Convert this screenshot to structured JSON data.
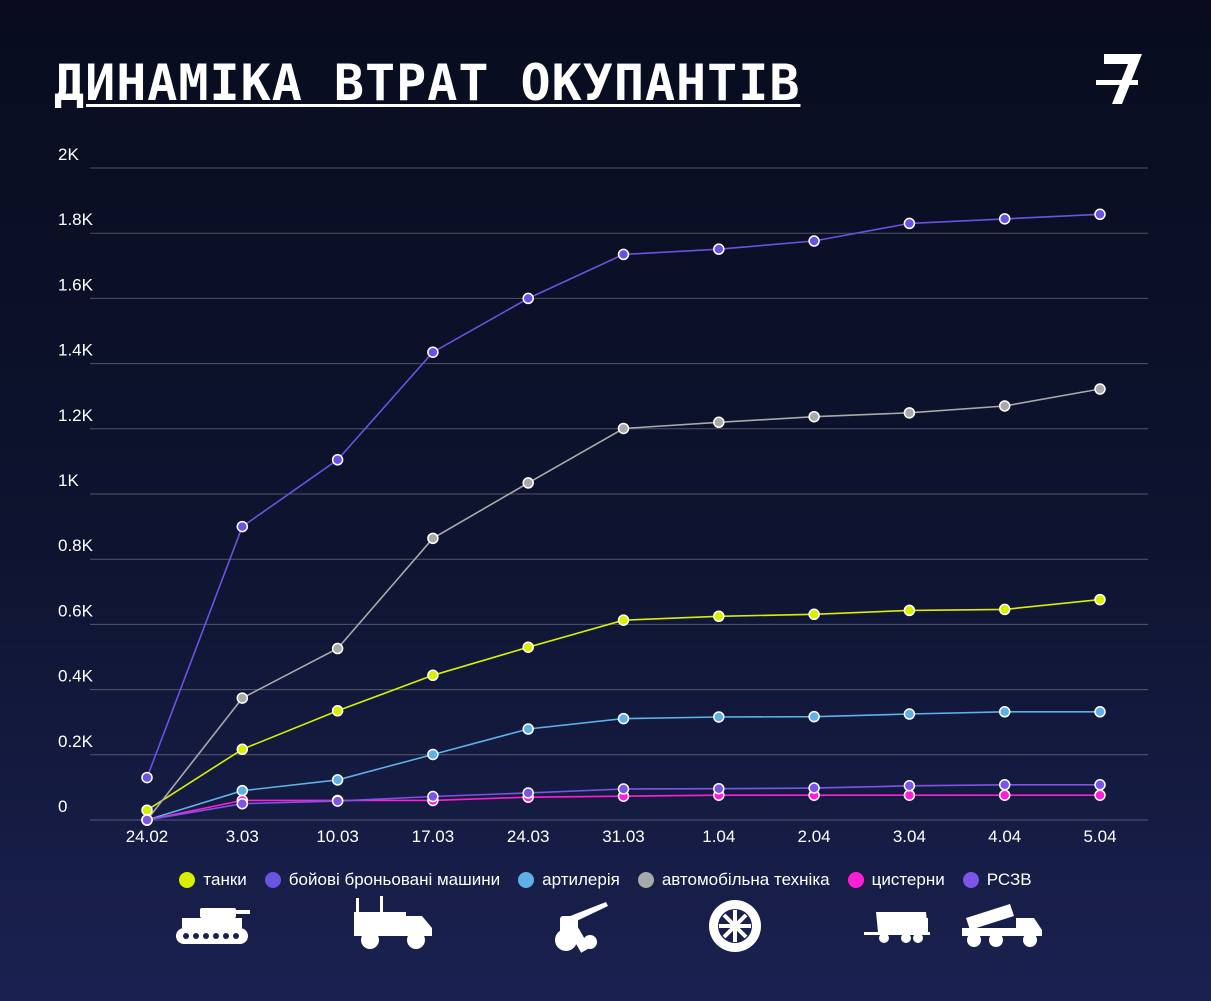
{
  "title": "ДИНАМІКА ВТРАТ ОКУПАНТІВ",
  "logo": {
    "icon": "z-logo-icon"
  },
  "chart_data": {
    "type": "line",
    "categories": [
      "24.02",
      "3.03",
      "10.03",
      "17.03",
      "24.03",
      "31.03",
      "1.04",
      "2.04",
      "3.04",
      "4.04",
      "5.04"
    ],
    "y_ticks": [
      "0",
      "0.2K",
      "0.4K",
      "0.6K",
      "0.8K",
      "1K",
      "1.2K",
      "1.4K",
      "1.6K",
      "1.8K",
      "2K"
    ],
    "ylim": [
      0,
      2000
    ],
    "grid": true,
    "legend_position": "bottom",
    "series": [
      {
        "name": "танки",
        "color": "#d8f000",
        "values": [
          30,
          217,
          335,
          444,
          530,
          613,
          625,
          631,
          643,
          646,
          676
        ]
      },
      {
        "name": "бойові броньовані машини",
        "color": "#6c52e0",
        "values": [
          130,
          900,
          1105,
          1435,
          1600,
          1735,
          1751,
          1776,
          1830,
          1844,
          1858
        ]
      },
      {
        "name": "артилерія",
        "color": "#5fb0e6",
        "values": [
          0,
          90,
          123,
          201,
          279,
          311,
          316,
          317,
          325,
          332,
          332
        ]
      },
      {
        "name": "автомобільна техніка",
        "color": "#a9a9a9",
        "values": [
          0,
          374,
          526,
          864,
          1034,
          1201,
          1220,
          1237,
          1249,
          1270,
          1322
        ]
      },
      {
        "name": "цистерни",
        "color": "#ff1fd2",
        "values": [
          0,
          60,
          60,
          60,
          70,
          73,
          76,
          76,
          76,
          76,
          76
        ]
      },
      {
        "name": "РСЗВ",
        "color": "#7b55e8",
        "values": [
          0,
          50,
          58,
          72,
          83,
          95,
          96,
          98,
          105,
          108,
          108
        ]
      }
    ],
    "icons": [
      "tank-icon",
      "armored-vehicle-icon",
      "artillery-icon",
      "wheel-icon",
      "fuel-tanker-icon",
      "mlrs-icon"
    ]
  }
}
